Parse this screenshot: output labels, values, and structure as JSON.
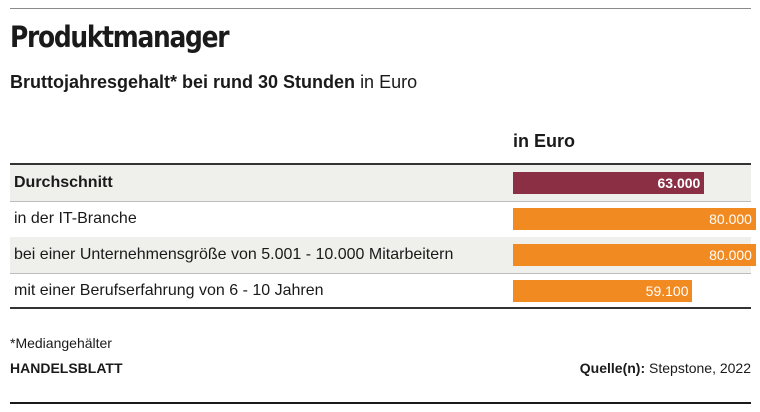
{
  "title": "Produktmanager",
  "subtitle": {
    "bold": "Bruttojahresgehalt* bei rund 30 Stunden",
    "normal": "in Euro"
  },
  "column_header": "in Euro",
  "colors": {
    "highlight": "#8b2f45",
    "bar": "#f28a22"
  },
  "chart_data": {
    "type": "bar",
    "orientation": "horizontal",
    "categories": [
      "Durchschnitt",
      "in der IT-Branche",
      "bei einer Unternehmensgröße von 5.001 - 10.000 Mitarbeitern",
      "mit einer Berufserfahrung von 6 - 10 Jahren"
    ],
    "values": [
      63000,
      80000,
      80000,
      59100
    ],
    "value_labels": [
      "63.000",
      "80.000",
      "80.000",
      "59.100"
    ],
    "highlight_index": 0,
    "xlim": [
      0,
      81000
    ]
  },
  "footnote": "*Mediangehälter",
  "brand": "HANDELSBLATT",
  "source": {
    "label": "Quelle(n):",
    "text": "Stepstone, 2022"
  }
}
